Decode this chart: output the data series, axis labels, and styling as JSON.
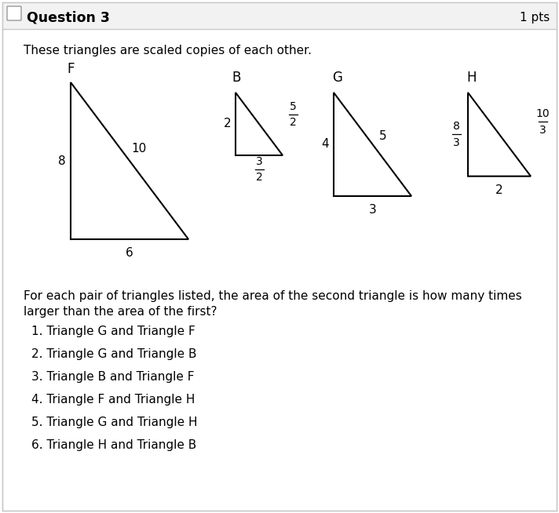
{
  "title": "Question 3",
  "pts": "1 pts",
  "intro": "These triangles are scaled copies of each other.",
  "question_text_line1": "For each pair of triangles listed, the area of the second triangle is how many times",
  "question_text_line2": "larger than the area of the first?",
  "items": [
    "1. Triangle G and Triangle F",
    "2. Triangle G and Triangle B",
    "3. Triangle B and Triangle F",
    "4. Triangle F and Triangle H",
    "5. Triangle G and Triangle H",
    "6. Triangle H and Triangle B"
  ],
  "bg_color": "#ffffff",
  "header_bg": "#f2f2f2",
  "border_color": "#c8c8c8",
  "text_color": "#000000",
  "triangle_color": "#000000",
  "triangle_lw": 1.5
}
